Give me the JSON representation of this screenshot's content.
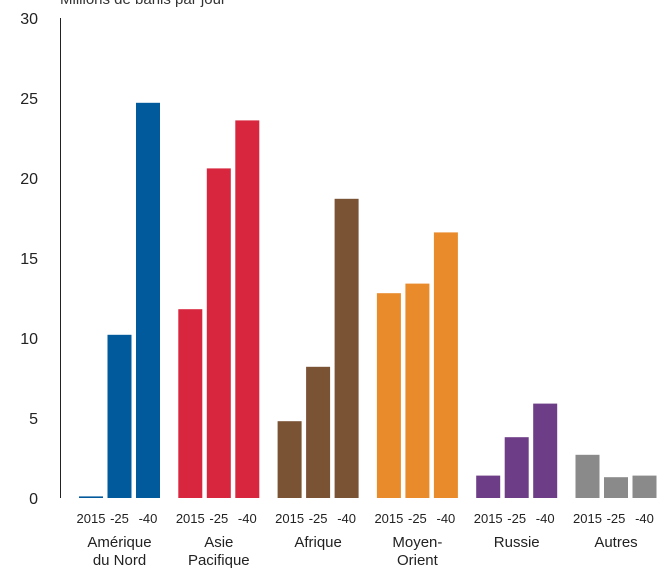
{
  "chart_data": {
    "type": "bar",
    "title": "Millions de barils par jour",
    "xlabel": "",
    "ylabel": "",
    "ylim": [
      0,
      30
    ],
    "yticks": [
      "0",
      "5",
      "10",
      "15",
      "20",
      "25",
      "30"
    ],
    "grid": false,
    "legend": "none",
    "groups": [
      {
        "name": [
          "Amérique",
          "du Nord"
        ],
        "color": "#005a9c",
        "ticks": [
          "2015",
          "-25",
          "-40"
        ],
        "values": [
          0.1,
          10.2,
          24.7
        ]
      },
      {
        "name": [
          "Asie",
          "Pacifique"
        ],
        "color": "#d7263d",
        "ticks": [
          "2015",
          "-25",
          "-40"
        ],
        "values": [
          11.8,
          20.6,
          23.6
        ]
      },
      {
        "name": [
          "Afrique"
        ],
        "color": "#7a5234",
        "ticks": [
          "2015",
          "-25",
          "-40"
        ],
        "values": [
          4.8,
          8.2,
          18.7
        ]
      },
      {
        "name": [
          "Moyen-",
          "Orient"
        ],
        "color": "#e98a2b",
        "ticks": [
          "2015",
          "-25",
          "-40"
        ],
        "values": [
          12.8,
          13.4,
          16.6
        ]
      },
      {
        "name": [
          "Russie"
        ],
        "color": "#6e3d87",
        "ticks": [
          "2015",
          "-25",
          "-40"
        ],
        "values": [
          1.4,
          3.8,
          5.9
        ]
      },
      {
        "name": [
          "Autres"
        ],
        "color": "#8a8a8a",
        "ticks": [
          "2015",
          "-25",
          "-40"
        ],
        "values": [
          2.7,
          1.3,
          1.4
        ]
      }
    ]
  }
}
